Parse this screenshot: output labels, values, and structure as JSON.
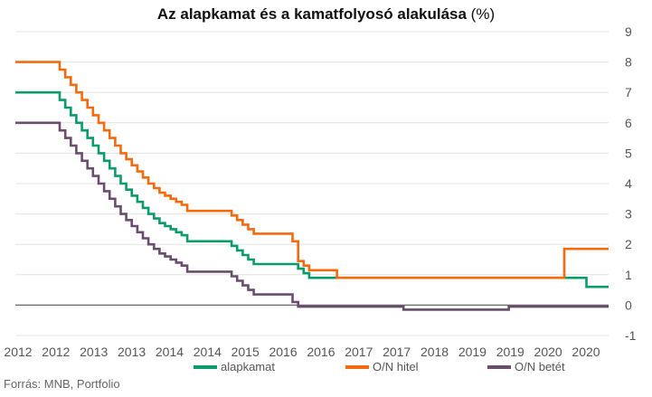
{
  "title": "Az alapkamat és a kamatfolyosó alakulása",
  "title_unit": "(%)",
  "source": "Forrás: MNB, Portfolio",
  "chart_data": {
    "type": "line",
    "step": true,
    "title": "Az alapkamat és a kamatfolyosó alakulása (%)",
    "xlabel": "",
    "ylabel": "",
    "x_tick_labels": [
      "2012",
      "2012",
      "2013",
      "2013",
      "2014",
      "2014",
      "2015",
      "2016",
      "2016",
      "2017",
      "2017",
      "2018",
      "2019",
      "2019",
      "2020",
      "2020"
    ],
    "ylim": [
      -1,
      9
    ],
    "y_ticks": [
      -1,
      0,
      1,
      2,
      3,
      4,
      5,
      6,
      7,
      8,
      9
    ],
    "y_axis_position": "right",
    "grid": "horizontal",
    "legend_position": "bottom",
    "series": [
      {
        "name": "alapkamat",
        "color": "#0a9b6b",
        "x": [
          "2012-01",
          "2012-08",
          "2012-09",
          "2012-10",
          "2012-11",
          "2012-12",
          "2013-01",
          "2013-02",
          "2013-03",
          "2013-04",
          "2013-05",
          "2013-06",
          "2013-07",
          "2013-08",
          "2013-09",
          "2013-10",
          "2013-11",
          "2013-12",
          "2014-01",
          "2014-02",
          "2014-03",
          "2014-04",
          "2014-05",
          "2014-06",
          "2014-07",
          "2014-08",
          "2015-03",
          "2015-04",
          "2015-05",
          "2015-06",
          "2015-07",
          "2015-08",
          "2016-03",
          "2016-04",
          "2016-05",
          "2016-06",
          "2020-07",
          "2020-08",
          "2020-12"
        ],
        "values": [
          7.0,
          7.0,
          6.75,
          6.5,
          6.25,
          6.0,
          5.75,
          5.5,
          5.25,
          5.0,
          4.75,
          4.5,
          4.25,
          4.0,
          3.8,
          3.6,
          3.4,
          3.2,
          3.0,
          2.85,
          2.7,
          2.6,
          2.5,
          2.4,
          2.3,
          2.1,
          2.1,
          1.95,
          1.8,
          1.65,
          1.5,
          1.35,
          1.35,
          1.2,
          1.05,
          0.9,
          0.9,
          0.6,
          0.6
        ]
      },
      {
        "name": "O/N hitel",
        "color": "#f46a0d",
        "x": [
          "2012-01",
          "2012-08",
          "2012-09",
          "2012-10",
          "2012-11",
          "2012-12",
          "2013-01",
          "2013-02",
          "2013-03",
          "2013-04",
          "2013-05",
          "2013-06",
          "2013-07",
          "2013-08",
          "2013-09",
          "2013-10",
          "2013-11",
          "2013-12",
          "2014-01",
          "2014-02",
          "2014-03",
          "2014-04",
          "2014-05",
          "2014-06",
          "2014-07",
          "2014-08",
          "2015-03",
          "2015-04",
          "2015-05",
          "2015-06",
          "2015-07",
          "2015-08",
          "2016-03",
          "2016-04",
          "2016-05",
          "2016-06",
          "2016-10",
          "2016-11",
          "2020-03",
          "2020-04",
          "2020-12"
        ],
        "values": [
          8.0,
          8.0,
          7.75,
          7.5,
          7.25,
          7.0,
          6.75,
          6.5,
          6.25,
          6.0,
          5.75,
          5.5,
          5.25,
          5.0,
          4.8,
          4.6,
          4.4,
          4.2,
          4.0,
          3.85,
          3.7,
          3.6,
          3.5,
          3.4,
          3.3,
          3.1,
          3.1,
          2.95,
          2.8,
          2.65,
          2.5,
          2.35,
          2.1,
          1.45,
          1.3,
          1.15,
          1.15,
          0.9,
          0.9,
          1.85,
          1.85
        ]
      },
      {
        "name": "O/N betét",
        "color": "#6a4c6e",
        "x": [
          "2012-01",
          "2012-08",
          "2012-09",
          "2012-10",
          "2012-11",
          "2012-12",
          "2013-01",
          "2013-02",
          "2013-03",
          "2013-04",
          "2013-05",
          "2013-06",
          "2013-07",
          "2013-08",
          "2013-09",
          "2013-10",
          "2013-11",
          "2013-12",
          "2014-01",
          "2014-02",
          "2014-03",
          "2014-04",
          "2014-05",
          "2014-06",
          "2014-07",
          "2014-08",
          "2015-03",
          "2015-04",
          "2015-05",
          "2015-06",
          "2015-07",
          "2015-08",
          "2016-03",
          "2016-04",
          "2017-10",
          "2017-11",
          "2019-05",
          "2019-06",
          "2020-12"
        ],
        "values": [
          6.0,
          6.0,
          5.75,
          5.5,
          5.25,
          5.0,
          4.75,
          4.5,
          4.25,
          4.0,
          3.75,
          3.5,
          3.25,
          3.0,
          2.8,
          2.6,
          2.4,
          2.2,
          2.0,
          1.85,
          1.7,
          1.6,
          1.5,
          1.4,
          1.3,
          1.1,
          1.1,
          0.95,
          0.8,
          0.65,
          0.5,
          0.35,
          0.1,
          -0.05,
          -0.05,
          -0.15,
          -0.15,
          -0.05,
          -0.05
        ]
      }
    ]
  }
}
